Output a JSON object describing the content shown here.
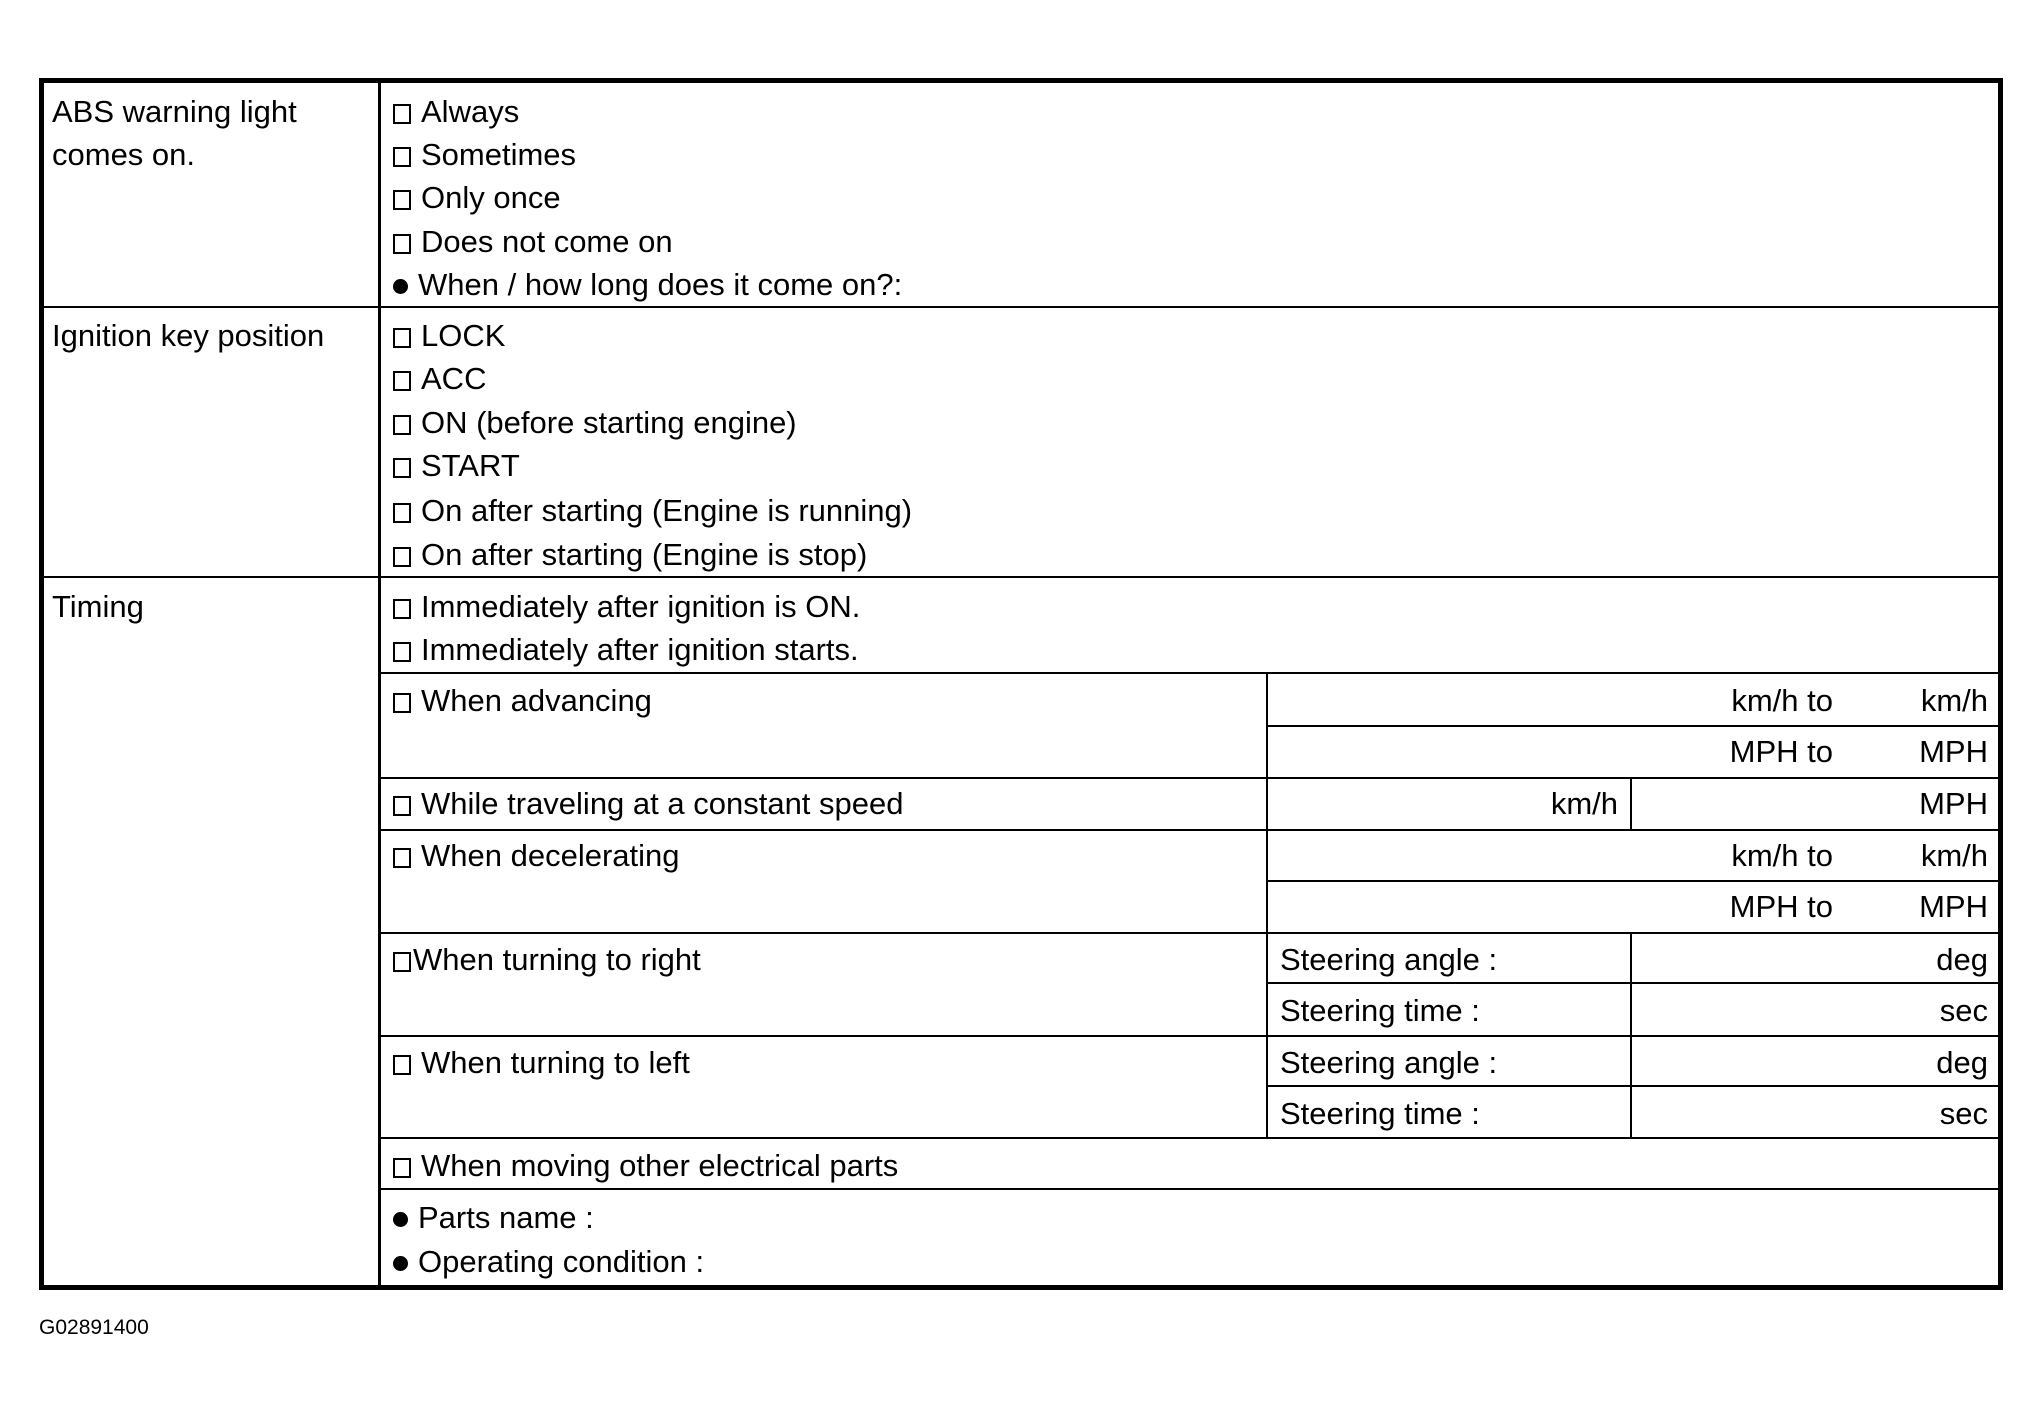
{
  "abs": {
    "label_line1": "ABS warning light",
    "label_line2": "comes on.",
    "options": [
      "Always",
      "Sometimes",
      "Only once",
      "Does not come on"
    ],
    "question": "When / how long does it come on?:"
  },
  "ignition": {
    "label": "Ignition key position",
    "options": [
      "LOCK",
      "ACC",
      "ON (before starting engine)",
      "START",
      "On after starting (Engine is running)",
      "On after starting (Engine is stop)"
    ]
  },
  "timing": {
    "label": "Timing",
    "immediate": [
      "Immediately after ignition is ON.",
      "Immediately after ignition starts."
    ],
    "advancing": {
      "label": "When advancing",
      "kmh_to": "km/h to",
      "kmh": "km/h",
      "mph_to": "MPH to",
      "mph": "MPH"
    },
    "constant": {
      "label": "While traveling at a constant speed",
      "kmh": "km/h",
      "mph": "MPH"
    },
    "decelerating": {
      "label": "When decelerating",
      "kmh_to": "km/h to",
      "kmh": "km/h",
      "mph_to": "MPH to",
      "mph": "MPH"
    },
    "right": {
      "label": "When turning to right",
      "angle": "Steering angle :",
      "deg": "deg",
      "time": "Steering time :",
      "sec": "sec"
    },
    "left": {
      "label": "When turning to left",
      "angle": "Steering angle :",
      "deg": "deg",
      "time": "Steering time :",
      "sec": "sec"
    },
    "electrical": "When moving other electrical parts",
    "parts_name": "Parts name :",
    "operating_condition": "Operating condition :"
  },
  "caption": "G02891400"
}
